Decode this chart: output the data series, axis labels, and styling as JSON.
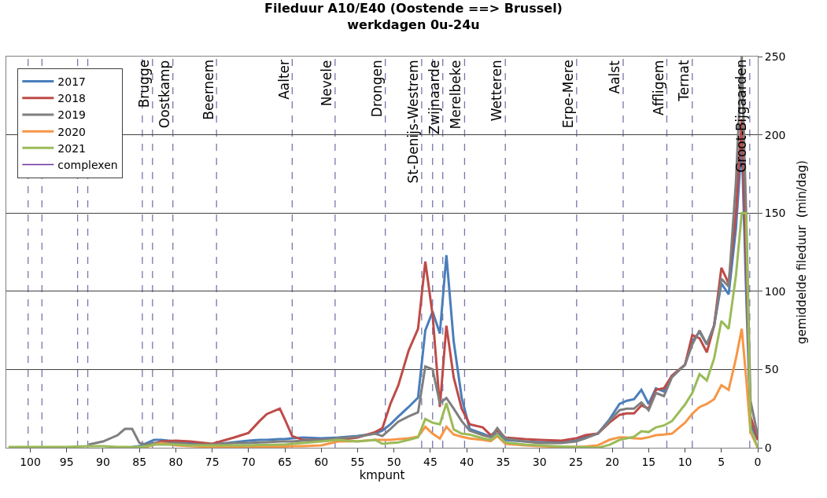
{
  "chart_data": {
    "type": "line",
    "title": "Fileduur A10/E40 (Oostende ==> Brussel)",
    "subtitle": "werkdagen 0u-24u",
    "xlabel": "kmpunt",
    "ylabel": "gemiddelde fileduur  (min/dag)",
    "x": [
      103,
      100,
      95,
      92,
      90,
      88,
      87,
      86,
      85,
      84,
      83,
      82,
      80,
      78,
      75,
      72,
      70,
      68.5,
      67.5,
      65.7,
      65,
      64,
      62.5,
      60,
      57.7,
      55,
      52.6,
      51.6,
      50.5,
      49.4,
      48,
      46.7,
      45.7,
      44.7,
      43.7,
      42.8,
      41.8,
      40.7,
      39.6,
      37.8,
      36.7,
      35.8,
      34.7,
      32,
      30,
      27,
      25,
      23.7,
      22,
      20.4,
      19,
      18,
      17,
      16,
      15,
      14,
      12.9,
      11.8,
      10,
      9,
      8,
      7,
      6,
      5,
      4,
      3,
      2.2,
      1.6,
      1,
      0
    ],
    "series": [
      {
        "name": "2017",
        "color": "#4a7ebb",
        "values": [
          null,
          null,
          null,
          null,
          null,
          null,
          null,
          0.5,
          1,
          3,
          5,
          5,
          4,
          3,
          2,
          3.5,
          4.5,
          5,
          5,
          5.5,
          5.5,
          6,
          6.5,
          6,
          6.5,
          7.5,
          9,
          11,
          15,
          20,
          26,
          32,
          75,
          87,
          73,
          123,
          68,
          32,
          12,
          9,
          7,
          9,
          5,
          4,
          3.5,
          3.5,
          4.5,
          7,
          9,
          18,
          28,
          30,
          31,
          37,
          28,
          38,
          36,
          46,
          53,
          68,
          74,
          66,
          78,
          105,
          98,
          140,
          195,
          100,
          15,
          5
        ]
      },
      {
        "name": "2018",
        "color": "#be4b48",
        "values": [
          null,
          null,
          null,
          null,
          null,
          null,
          null,
          null,
          null,
          1,
          2.5,
          4,
          4.5,
          4,
          2.5,
          6.5,
          9.5,
          17,
          21.5,
          25,
          18,
          7.5,
          5,
          5,
          5,
          6.5,
          10,
          12.5,
          28,
          40,
          62,
          76,
          119,
          85,
          26,
          78,
          45,
          25,
          15,
          13,
          8,
          11,
          6.5,
          5.5,
          5,
          4.5,
          6,
          8,
          9,
          16,
          21,
          22,
          22,
          27,
          25,
          37,
          38,
          46,
          53,
          72,
          70,
          61,
          78,
          115,
          105,
          150,
          210,
          120,
          20,
          5
        ]
      },
      {
        "name": "2019",
        "color": "#7f7f7f",
        "values": [
          null,
          null,
          null,
          2,
          4,
          8,
          12,
          12,
          3,
          2,
          3,
          3,
          3,
          2,
          2,
          3,
          3,
          3.4,
          3.5,
          4,
          4,
          4,
          4.5,
          5,
          6,
          7,
          9,
          7.5,
          12,
          16.7,
          20,
          22.6,
          51.9,
          50.2,
          28.4,
          31.8,
          25,
          17,
          10.9,
          8,
          6.7,
          12.5,
          5.9,
          4,
          3,
          3,
          4,
          6,
          9,
          17,
          24,
          25,
          25,
          29,
          24,
          35,
          33,
          45,
          53,
          66,
          75,
          66,
          78,
          108,
          103,
          170,
          250,
          150,
          30,
          8
        ]
      },
      {
        "name": "2020",
        "color": "#f79646",
        "values": [
          null,
          null,
          null,
          null,
          null,
          null,
          null,
          null,
          0,
          0.5,
          2,
          3,
          1.5,
          1,
          0.5,
          0.5,
          0.5,
          0.8,
          0.8,
          0.8,
          0.8,
          1,
          1,
          1.5,
          4,
          4.2,
          5,
          5,
          5,
          5.5,
          6,
          7,
          13.4,
          9,
          5.9,
          13.4,
          8.4,
          7,
          5.9,
          5,
          4.2,
          7.5,
          2.5,
          1.5,
          1,
          0.5,
          0.5,
          0.8,
          1.5,
          5,
          6.7,
          6.5,
          6,
          5.8,
          6.7,
          8,
          8.4,
          9,
          16,
          21.7,
          26,
          28,
          31,
          40,
          37,
          57,
          76,
          45,
          10,
          0
        ]
      },
      {
        "name": "2021",
        "color": "#9bbb59",
        "values": [
          0.5,
          0.5,
          0.5,
          1,
          1,
          0.5,
          0.5,
          0.5,
          0.5,
          1,
          2,
          2,
          2,
          1.5,
          1.5,
          1.5,
          1.5,
          1.7,
          1.7,
          2,
          2,
          2.5,
          3,
          4,
          5,
          4,
          5,
          2.5,
          3,
          3.4,
          5,
          6.7,
          18.4,
          16,
          15,
          28.5,
          11.7,
          9,
          8.4,
          6,
          5,
          8.4,
          3.4,
          2,
          1.5,
          0.8,
          0.5,
          0.5,
          0,
          1.8,
          5,
          6,
          7,
          10.5,
          10,
          13,
          14.2,
          17,
          27.6,
          35,
          47,
          43,
          57,
          81,
          76,
          110,
          150,
          150,
          12,
          0
        ]
      },
      {
        "name": "complexen",
        "color": "#7030a0",
        "values": [
          null,
          null,
          null,
          null,
          null,
          null,
          null,
          null,
          null,
          null,
          null,
          null,
          null,
          null,
          null,
          null,
          null,
          null,
          null,
          null,
          null,
          null,
          null,
          null,
          null,
          null,
          null,
          null,
          null,
          null,
          null,
          null,
          null,
          null,
          null,
          null,
          null,
          null,
          null,
          null,
          null,
          null,
          null,
          null,
          null,
          null,
          null,
          null,
          null,
          null,
          null,
          null,
          null,
          null,
          null,
          null,
          null,
          null,
          null,
          null,
          null,
          null,
          null,
          null,
          null,
          null,
          null,
          null,
          null,
          null
        ]
      }
    ],
    "ref_lines": [
      {
        "axis": "x",
        "value": 100.3,
        "color": "#7777aa",
        "line_style": "dashed"
      },
      {
        "axis": "x",
        "value": 98.4,
        "color": "#7777aa",
        "line_style": "dashed"
      },
      {
        "axis": "x",
        "value": 93.5,
        "color": "#7777aa",
        "line_style": "dashed"
      },
      {
        "axis": "x",
        "value": 92.1,
        "color": "#7777aa",
        "line_style": "dashed"
      },
      {
        "axis": "x",
        "value": 84.6,
        "color": "#7777aa",
        "line_style": "dashed"
      },
      {
        "axis": "x",
        "value": 83.2,
        "label": "Brugge",
        "color": "#7777aa",
        "line_style": "dashed"
      },
      {
        "axis": "x",
        "value": 80.4,
        "label": "Oostkamp",
        "color": "#7777aa",
        "line_style": "dashed"
      },
      {
        "axis": "x",
        "value": 74.4,
        "label": "Beernem",
        "color": "#7777aa",
        "line_style": "dashed"
      },
      {
        "axis": "x",
        "value": 64.0,
        "label": "Aalter",
        "color": "#7777aa",
        "line_style": "dashed"
      },
      {
        "axis": "x",
        "value": 58.1,
        "label": "Nevele",
        "color": "#7777aa",
        "line_style": "dashed"
      },
      {
        "axis": "x",
        "value": 51.2,
        "label": "Drongen",
        "color": "#7777aa",
        "line_style": "dashed"
      },
      {
        "axis": "x",
        "value": 46.2,
        "label": "St-Denijs-Westrem",
        "color": "#7777aa",
        "line_style": "dashed"
      },
      {
        "axis": "x",
        "value": 44.7,
        "color": "#7777aa",
        "line_style": "dashed"
      },
      {
        "axis": "x",
        "value": 43.3,
        "label": "Zwijnaarde",
        "color": "#7777aa",
        "line_style": "dashed"
      },
      {
        "axis": "x",
        "value": 40.3,
        "label": "Merelbeke",
        "color": "#7777aa",
        "line_style": "dashed"
      },
      {
        "axis": "x",
        "value": 34.7,
        "label": "Wetteren",
        "color": "#7777aa",
        "line_style": "dashed"
      },
      {
        "axis": "x",
        "value": 24.9,
        "label": "Erpe-Mere",
        "color": "#7777aa",
        "line_style": "dashed"
      },
      {
        "axis": "x",
        "value": 18.5,
        "label": "Aalst",
        "color": "#7777aa",
        "line_style": "dashed"
      },
      {
        "axis": "x",
        "value": 12.5,
        "label": "Affligem",
        "color": "#7777aa",
        "line_style": "dashed"
      },
      {
        "axis": "x",
        "value": 9.0,
        "label": "Ternat",
        "color": "#7777aa",
        "line_style": "dashed"
      },
      {
        "axis": "x",
        "value": 1.1,
        "label": "Groot-Bijgaarden",
        "color": "#7777aa",
        "line_style": "dashed"
      }
    ],
    "xlim": [
      103.3,
      0
    ],
    "xticks": [
      100,
      95,
      90,
      85,
      80,
      75,
      70,
      65,
      60,
      55,
      50,
      45,
      40,
      35,
      30,
      25,
      20,
      15,
      10,
      5,
      0
    ],
    "ylim": [
      0,
      250
    ],
    "yticks": [
      0,
      50,
      100,
      150,
      200,
      250
    ],
    "grid": "y",
    "legend": "top left",
    "marker": "none",
    "line_style": "solid"
  }
}
